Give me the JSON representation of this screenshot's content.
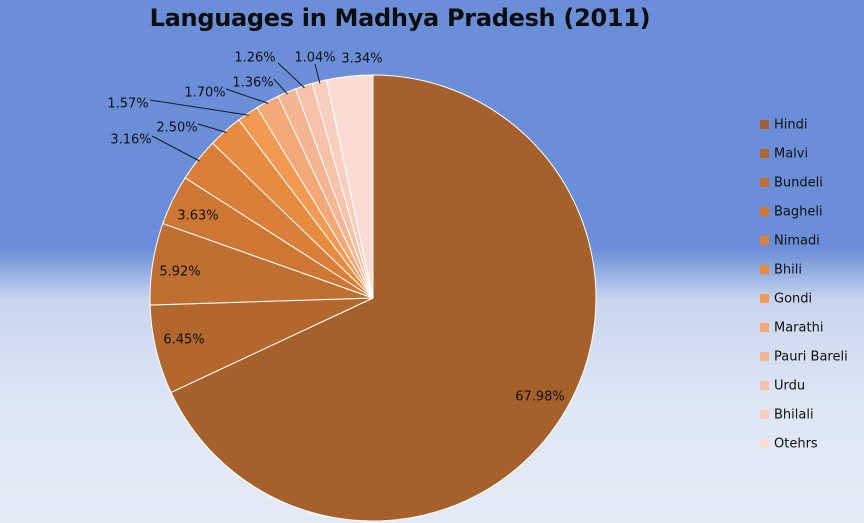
{
  "chart_data": {
    "type": "pie",
    "title": "Languages in Madhya Pradesh (2011)",
    "legend_position": "right",
    "slices": [
      {
        "name": "Hindi",
        "value": 67.98,
        "label": "67.98%",
        "color": "#a56129"
      },
      {
        "name": "Malvi",
        "value": 6.45,
        "label": "6.45%",
        "color": "#b2672d"
      },
      {
        "name": "Bundeli",
        "value": 5.92,
        "label": "5.92%",
        "color": "#c06f32"
      },
      {
        "name": "Bagheli",
        "value": 3.63,
        "label": "3.63%",
        "color": "#cd7735"
      },
      {
        "name": "Nimadi",
        "value": 3.16,
        "label": "3.16%",
        "color": "#da7f3a"
      },
      {
        "name": "Bhili",
        "value": 2.5,
        "label": "2.50%",
        "color": "#e78b3f"
      },
      {
        "name": "Gondi",
        "value": 1.57,
        "label": "1.57%",
        "color": "#f29a52"
      },
      {
        "name": "Marathi",
        "value": 1.7,
        "label": "1.70%",
        "color": "#f2a877"
      },
      {
        "name": "Pauri Bareli",
        "value": 1.36,
        "label": "1.36%",
        "color": "#f4b592"
      },
      {
        "name": "Urdu",
        "value": 1.26,
        "label": "1.26%",
        "color": "#f6c2a9"
      },
      {
        "name": "Bhilali",
        "value": 1.04,
        "label": "1.04%",
        "color": "#f8cfbe"
      },
      {
        "name": "Otehrs",
        "value": 3.34,
        "label": "3.34%",
        "color": "#fbdcd2"
      }
    ]
  }
}
